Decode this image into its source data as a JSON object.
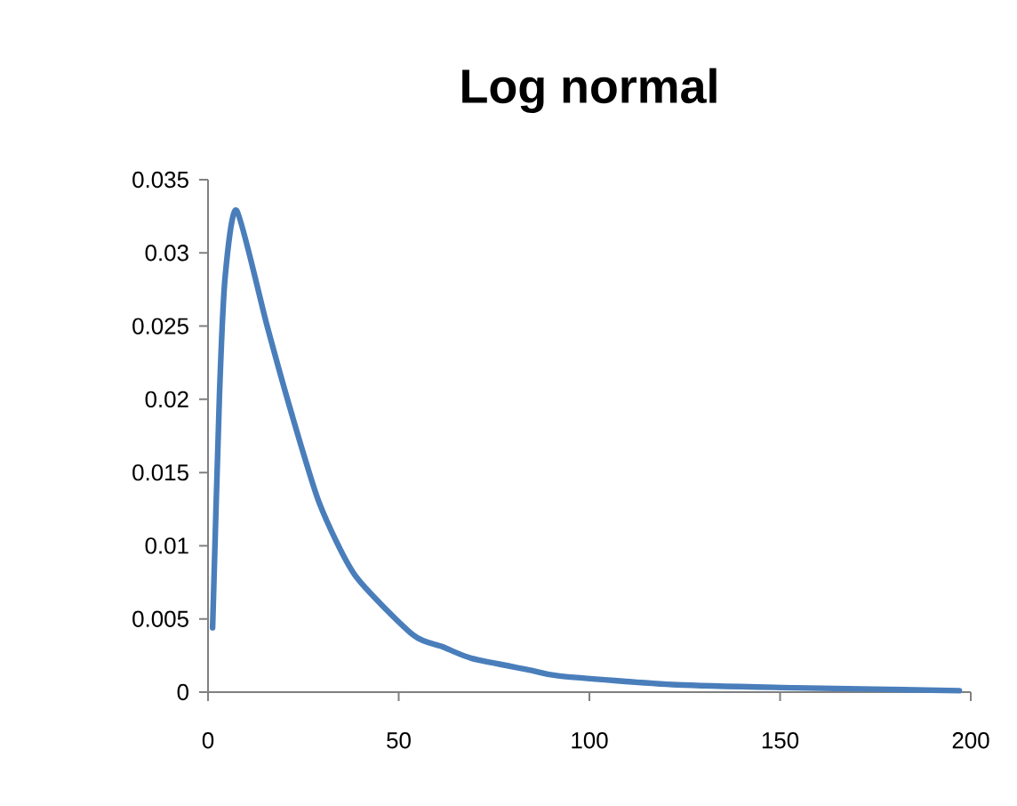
{
  "chart_data": {
    "type": "line",
    "title": "Log normal",
    "x": [
      1.2,
      3.0,
      4.5,
      7.5,
      15.4,
      21.5,
      29.2,
      38.5,
      53.8,
      61.5,
      69.2,
      84.6,
      92.2,
      123,
      154,
      197
    ],
    "series": [
      {
        "color": "#4a7ebb",
        "values": [
          0.0044,
          0.0203,
          0.0284,
          0.0329,
          0.0251,
          0.0194,
          0.0129,
          0.008,
          0.0039,
          0.0031,
          0.0023,
          0.0015,
          0.0011,
          0.0005,
          0.0003,
          0.0001
        ]
      }
    ],
    "xlim": [
      0,
      200
    ],
    "ylim": [
      0,
      0.035
    ],
    "xticks": [
      0,
      50,
      100,
      150,
      200
    ],
    "yticks": [
      0,
      0.005,
      0.01,
      0.015,
      0.02,
      0.025,
      0.03,
      0.035
    ],
    "grid": false,
    "marker": "none",
    "line_style": "solid"
  }
}
